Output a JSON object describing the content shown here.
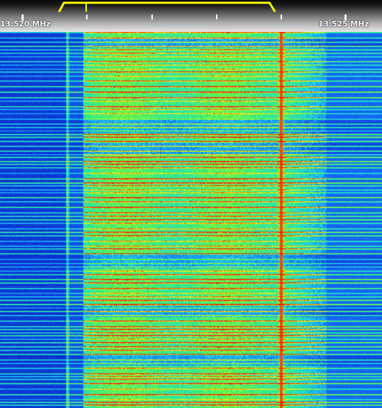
{
  "scale": {
    "left_label": "13.520 MHz",
    "right_label": "13.525 MHz"
  },
  "colors": {
    "passband": "#ffff00",
    "tick": "#ffffff",
    "low_signal": "#0a3cd0",
    "high_signal": "#ff0000"
  }
}
